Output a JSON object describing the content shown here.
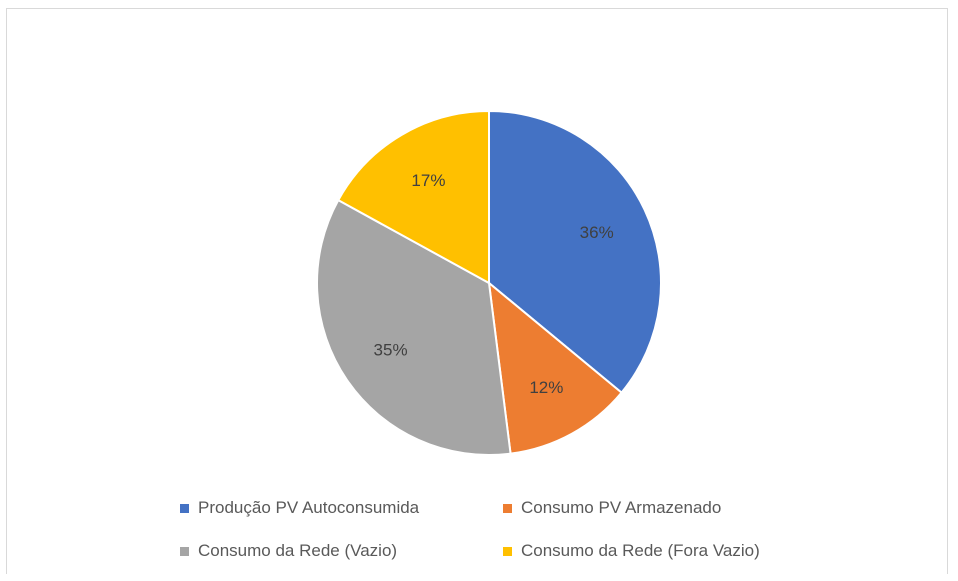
{
  "chart_data": {
    "type": "pie",
    "title": "",
    "categories": [
      "Produção PV Autoconsumida",
      "Consumo PV Armazenado",
      "Consumo da Rede (Vazio)",
      "Consumo da Rede (Fora Vazio)"
    ],
    "values": [
      36,
      12,
      35,
      17
    ],
    "labels": [
      "36%",
      "12%",
      "35%",
      "17%"
    ],
    "colors": [
      "#4472c4",
      "#ed7d31",
      "#a5a5a5",
      "#ffc000"
    ],
    "legend_position": "bottom"
  }
}
